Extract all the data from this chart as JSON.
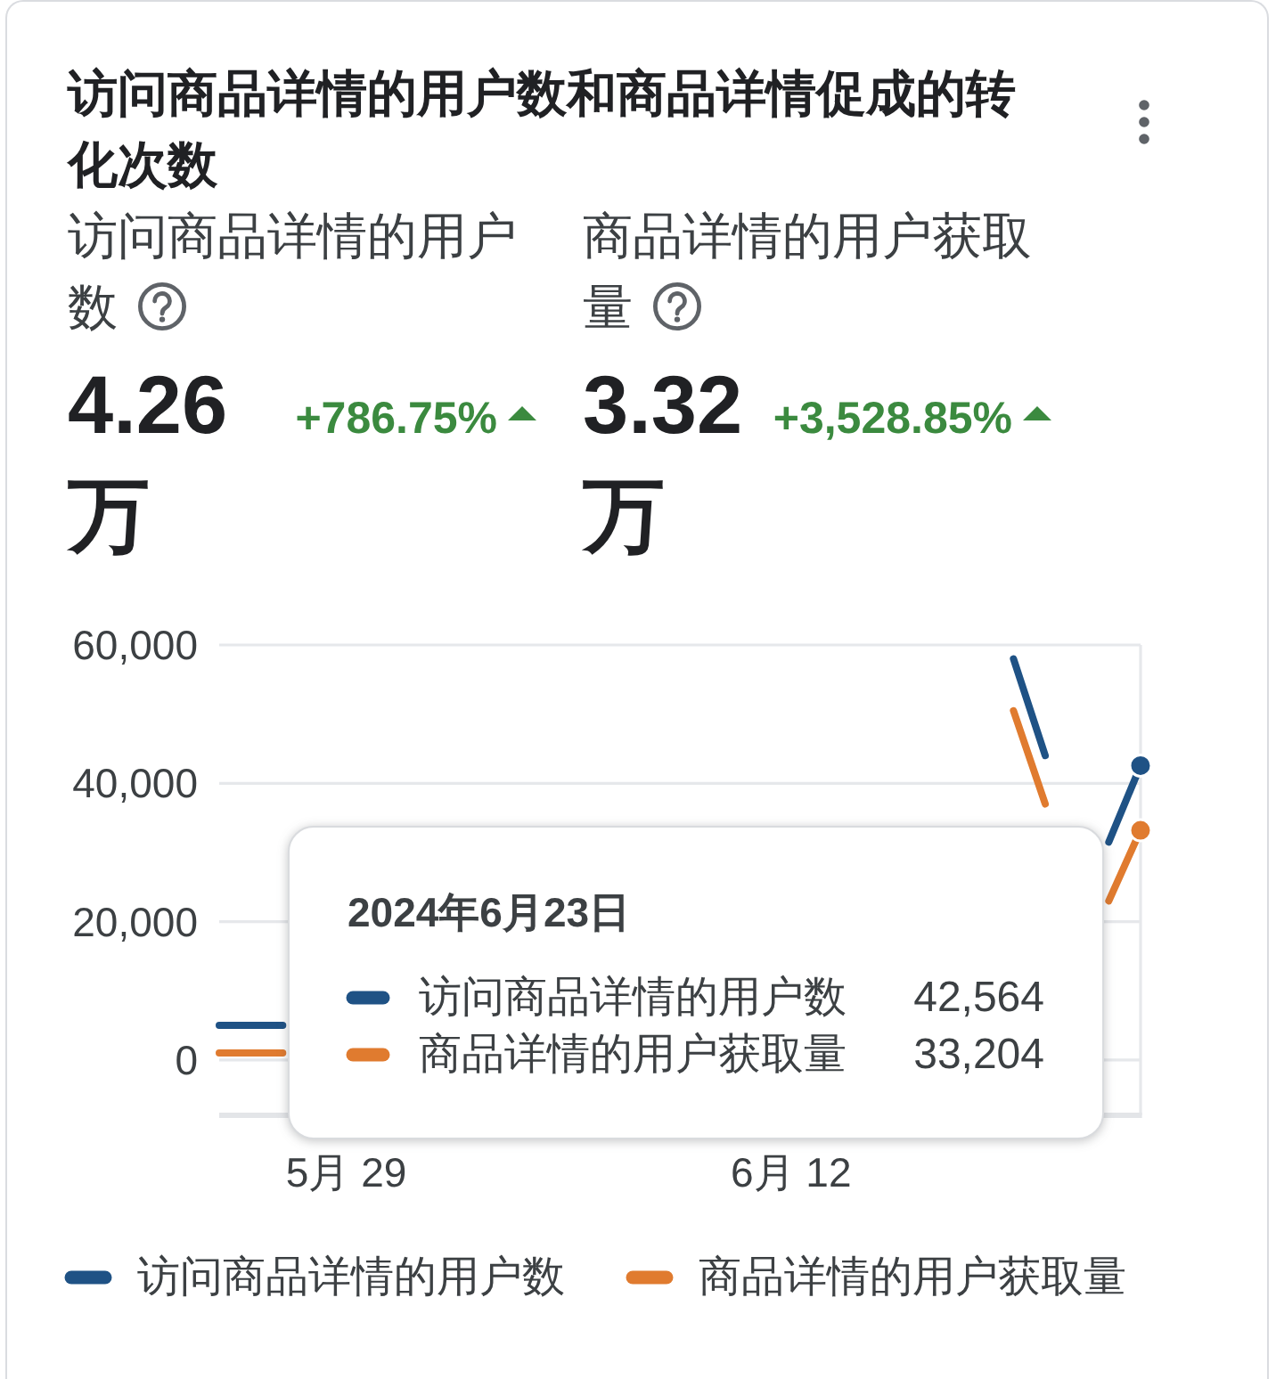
{
  "chart_data": {
    "type": "line",
    "title": "访问商品详情的用户数和商品详情促成的转化次数",
    "series": [
      {
        "name": "访问商品详情的用户数",
        "color": "#1f5285",
        "x": [
          "2024-05-25",
          "2024-05-26",
          "2024-05-27",
          "2024-06-19",
          "2024-06-20",
          "2024-06-22",
          "2024-06-23"
        ],
        "values": [
          5000,
          5000,
          5000,
          58000,
          44000,
          31500,
          42564
        ]
      },
      {
        "name": "商品详情的用户获取量",
        "color": "#e07b2f",
        "x": [
          "2024-05-25",
          "2024-05-26",
          "2024-05-27",
          "2024-06-19",
          "2024-06-20",
          "2024-06-22",
          "2024-06-23"
        ],
        "values": [
          1000,
          1000,
          1000,
          50500,
          37000,
          23000,
          33204
        ]
      }
    ],
    "xlim": [
      "2024-05-25",
      "2024-06-23"
    ],
    "xticks": [
      {
        "value": "2024-05-29",
        "label": "5月 29"
      },
      {
        "value": "2024-06-12",
        "label": "6月 12"
      }
    ],
    "ylim": [
      -8000,
      60000
    ],
    "yticks": [
      0,
      {
        "value": 20000,
        "label": "20,000"
      },
      {
        "value": 40000,
        "label": "40,000"
      },
      {
        "value": 60000,
        "label": "60,000"
      }
    ],
    "grid": "y",
    "legend": "bottom",
    "annotations": [
      "4.26万",
      "+786.75%",
      "3.32万",
      "+3,528.85%",
      "2024年6月23日",
      "42,564",
      "33,204"
    ]
  }
}
